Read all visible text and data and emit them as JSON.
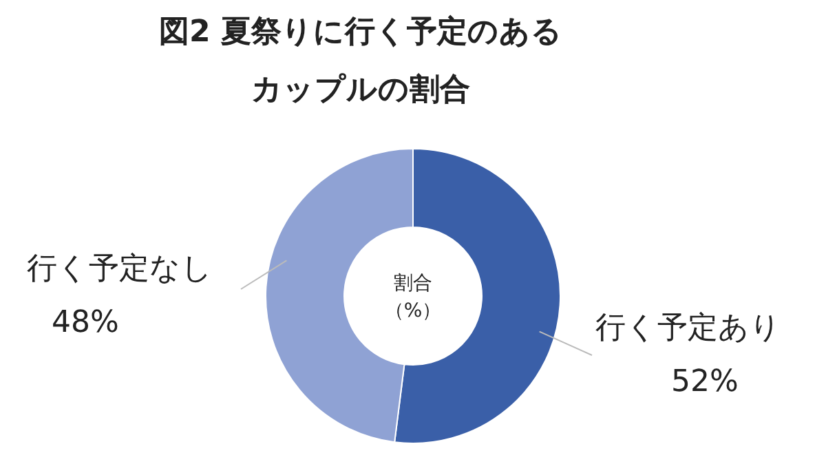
{
  "chart_data": {
    "type": "donut",
    "title": "図2 夏祭りに行く予定のあるカップルの割合",
    "categories": [
      "行く予定あり",
      "行く予定なし"
    ],
    "values": [
      52,
      48
    ],
    "colors": [
      "#3a5fa8",
      "#8fa2d4"
    ],
    "value_labels": [
      "52%",
      "48%"
    ],
    "annotations": [
      "割合（%）"
    ]
  }
}
